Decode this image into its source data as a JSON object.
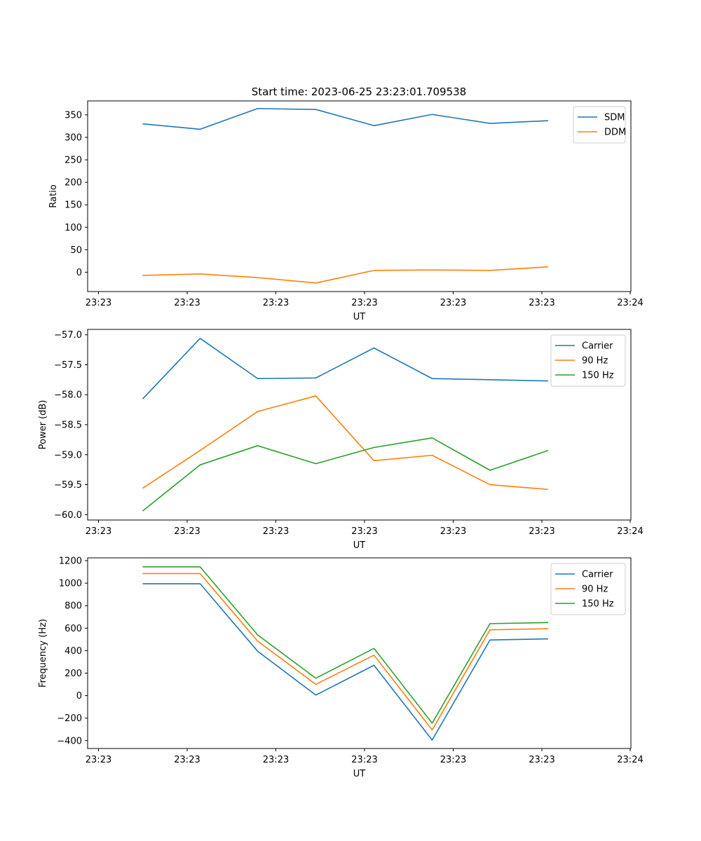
{
  "figure_title": "Start time: 2023-06-25 23:23:01.709538",
  "colors": {
    "blue": "#1f77b4",
    "orange": "#ff7f0e",
    "green": "#2ca02c"
  },
  "chart_data": [
    {
      "type": "line",
      "xlabel": "UT",
      "ylabel": "Ratio",
      "x_tick_labels": [
        "23:23",
        "23:23",
        "23:23",
        "23:23",
        "23:23",
        "23:23",
        "23:24"
      ],
      "yticks": [
        0,
        50,
        100,
        150,
        200,
        250,
        300,
        350
      ],
      "ylim": [
        -43,
        381
      ],
      "legend_loc": "upper right",
      "grid": false,
      "series": [
        {
          "name": "SDM",
          "color": "#1f77b4",
          "values": [
            330,
            318,
            364,
            362,
            326,
            351,
            331,
            337
          ]
        },
        {
          "name": "DDM",
          "color": "#ff7f0e",
          "values": [
            -7,
            -4,
            -12,
            -24,
            4,
            5,
            4,
            12
          ]
        }
      ]
    },
    {
      "type": "line",
      "xlabel": "UT",
      "ylabel": "Power (dB)",
      "x_tick_labels": [
        "23:23",
        "23:23",
        "23:23",
        "23:23",
        "23:23",
        "23:23",
        "23:24"
      ],
      "yticks": [
        -60.0,
        -59.5,
        -59.0,
        -58.5,
        -58.0,
        -57.5,
        -57.0
      ],
      "ytick_decimals": 1,
      "ylim": [
        -60.09,
        -56.91
      ],
      "legend_loc": "upper right",
      "grid": false,
      "series": [
        {
          "name": "Carrier",
          "color": "#1f77b4",
          "values": [
            -58.07,
            -57.06,
            -57.73,
            -57.72,
            -57.22,
            -57.73,
            -57.75,
            -57.77
          ]
        },
        {
          "name": "90 Hz",
          "color": "#ff7f0e",
          "values": [
            -59.56,
            -58.93,
            -58.28,
            -58.02,
            -59.1,
            -59.01,
            -59.5,
            -59.58
          ]
        },
        {
          "name": "150 Hz",
          "color": "#2ca02c",
          "values": [
            -59.94,
            -59.17,
            -58.85,
            -59.15,
            -58.88,
            -58.72,
            -59.26,
            -58.93
          ]
        }
      ]
    },
    {
      "type": "line",
      "xlabel": "UT",
      "ylabel": "Frequency (Hz)",
      "x_tick_labels": [
        "23:23",
        "23:23",
        "23:23",
        "23:23",
        "23:23",
        "23:23",
        "23:24"
      ],
      "yticks": [
        -400,
        -200,
        0,
        200,
        400,
        600,
        800,
        1000,
        1200
      ],
      "ylim": [
        -470,
        1225
      ],
      "legend_loc": "upper right",
      "grid": false,
      "series": [
        {
          "name": "Carrier",
          "color": "#1f77b4",
          "values": [
            995,
            995,
            395,
            5,
            270,
            -395,
            495,
            505
          ]
        },
        {
          "name": "90 Hz",
          "color": "#ff7f0e",
          "values": [
            1085,
            1085,
            485,
            100,
            360,
            -305,
            585,
            595
          ]
        },
        {
          "name": "150 Hz",
          "color": "#2ca02c",
          "values": [
            1145,
            1145,
            540,
            155,
            420,
            -245,
            640,
            650
          ]
        }
      ]
    }
  ]
}
